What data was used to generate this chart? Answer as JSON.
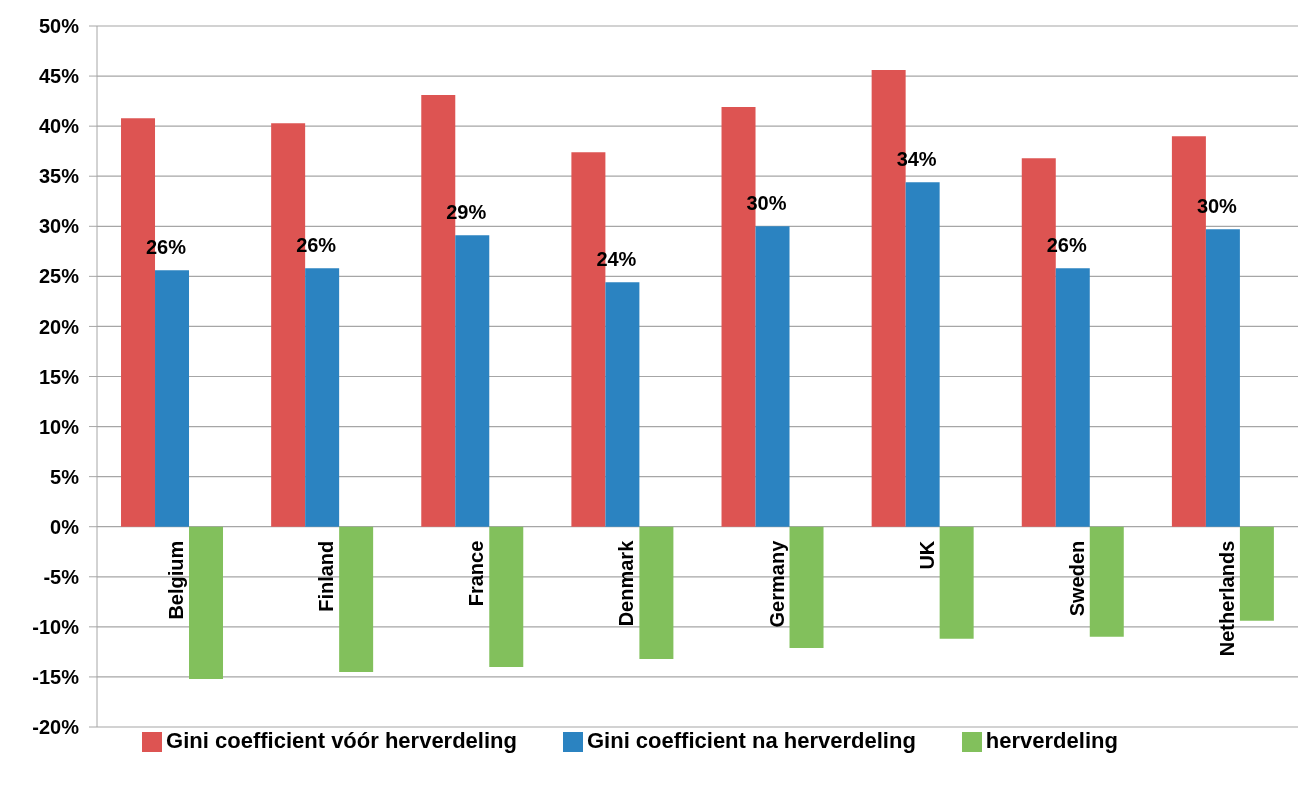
{
  "chart_data": {
    "type": "bar",
    "categories": [
      "Belgium",
      "Finland",
      "France",
      "Denmark",
      "Germany",
      "UK",
      "Sweden",
      "Netherlands"
    ],
    "series": [
      {
        "name": "Gini coefficient vóór herverdeling",
        "color": "#dd5452",
        "values": [
          40.8,
          40.3,
          43.1,
          37.4,
          41.9,
          45.6,
          36.8,
          39.0
        ]
      },
      {
        "name": "Gini coefficient na herverdeling",
        "color": "#2b83c1",
        "values": [
          25.6,
          25.8,
          29.1,
          24.4,
          30.0,
          34.4,
          25.8,
          29.7
        ],
        "value_labels": [
          "26%",
          "26%",
          "29%",
          "24%",
          "30%",
          "34%",
          "26%",
          "30%"
        ]
      },
      {
        "name": "herverdeling",
        "color": "#82c05c",
        "values": [
          -15.2,
          -14.5,
          -14.0,
          -13.2,
          -12.1,
          -11.2,
          -11.0,
          -9.4
        ]
      }
    ],
    "ylim": [
      -20,
      50
    ],
    "yticks": [
      {
        "value": -20,
        "label": "-20%"
      },
      {
        "value": -15,
        "label": "-15%"
      },
      {
        "value": -10,
        "label": "-10%"
      },
      {
        "value": -5,
        "label": "-5%"
      },
      {
        "value": 0,
        "label": "0%"
      },
      {
        "value": 5,
        "label": "5%"
      },
      {
        "value": 10,
        "label": "10%"
      },
      {
        "value": 15,
        "label": "15%"
      },
      {
        "value": 20,
        "label": "20%"
      },
      {
        "value": 25,
        "label": "25%"
      },
      {
        "value": 30,
        "label": "30%"
      },
      {
        "value": 35,
        "label": "35%"
      },
      {
        "value": 40,
        "label": "40%"
      },
      {
        "value": 45,
        "label": "45%"
      },
      {
        "value": 50,
        "label": "50%"
      }
    ],
    "grid": "y",
    "legend": "bottom"
  }
}
